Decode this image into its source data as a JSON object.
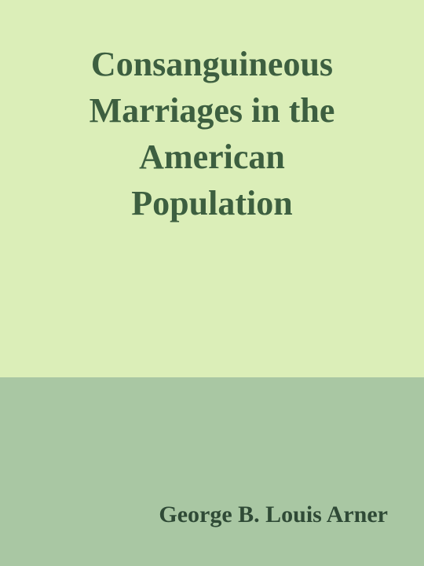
{
  "book": {
    "title_lines": [
      "Consanguineous",
      "Marriages in the",
      "American",
      "Population"
    ],
    "author": "George B. Louis Arner"
  },
  "colors": {
    "top_background": "#dbeeb8",
    "bottom_background": "#a9c7a3",
    "title_text": "#3d5f40",
    "author_text": "#2f4a36"
  }
}
